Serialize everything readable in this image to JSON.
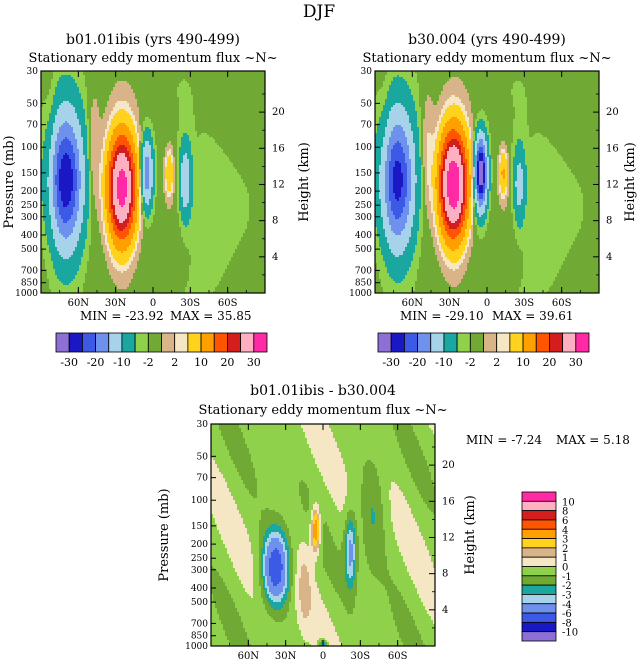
{
  "page_title": "DJF",
  "palette": {
    "main": [
      "#8e6fd6",
      "#1a17c4",
      "#3c5ae6",
      "#6f91ee",
      "#a6d3ea",
      "#1aa7a0",
      "#8fd14a",
      "#70a933",
      "#d8b488",
      "#f5e6c4",
      "#ffd21e",
      "#ff9f00",
      "#ff5400",
      "#d41d1d",
      "#ffb0c0",
      "#ff2aa4"
    ],
    "main_labels": [
      "-30",
      "-20",
      "-10",
      "-2",
      "2",
      "10",
      "20",
      "30"
    ],
    "diff": [
      "#8e6fd6",
      "#1a17c4",
      "#3c5ae6",
      "#6f91ee",
      "#a6d3ea",
      "#1aa7a0",
      "#70a933",
      "#8fd14a",
      "#f5e6c4",
      "#d8b488",
      "#ffd21e",
      "#ff9f00",
      "#ff5400",
      "#d41d1d",
      "#ffb0c0",
      "#ff2aa4"
    ],
    "diff_labels": [
      "10",
      "8",
      "6",
      "4",
      "3",
      "2",
      "1",
      "0",
      "-1",
      "-2",
      "-3",
      "-4",
      "-6",
      "-8",
      "-10"
    ]
  },
  "chart_data": [
    {
      "type": "heatmap",
      "title": "b01.01ibis (yrs 490-499)",
      "subtitle": "Stationary eddy momentum flux ~N~",
      "xlabel": "",
      "ylabel": "Pressure (mb)",
      "ylabel_right": "Height (km)",
      "x_ticks": [
        "60N",
        "30N",
        "0",
        "30S",
        "60S"
      ],
      "x_tick_values": [
        60,
        30,
        0,
        -30,
        -60
      ],
      "xlim": [
        90,
        -90
      ],
      "y_ticks": [
        30,
        50,
        70,
        100,
        150,
        200,
        250,
        300,
        400,
        500,
        700,
        850,
        1000
      ],
      "ylim": [
        1000,
        30
      ],
      "y_right_ticks": [
        4,
        8,
        12,
        16,
        20
      ],
      "min_label": "MIN =  -23.92",
      "max_label": "MAX =  35.85",
      "contour_levels": [
        -30,
        -25,
        -20,
        -15,
        -10,
        -5,
        -2,
        -1,
        0,
        1,
        2,
        5,
        10,
        15,
        20,
        30
      ],
      "features": [
        {
          "lat": 70,
          "p": 170,
          "value": -23.92
        },
        {
          "lat": 25,
          "p": 190,
          "value": 35.85
        },
        {
          "lat": 5,
          "p": 150,
          "value": -12
        },
        {
          "lat": -13,
          "p": 150,
          "value": 5
        },
        {
          "lat": -26,
          "p": 170,
          "value": -8
        }
      ]
    },
    {
      "type": "heatmap",
      "title": "b30.004 (yrs 490-499)",
      "subtitle": "Stationary eddy momentum flux ~N~",
      "xlabel": "",
      "ylabel": "",
      "ylabel_right": "Height (km)",
      "x_ticks": [
        "60N",
        "30N",
        "0",
        "30S",
        "60S"
      ],
      "x_tick_values": [
        60,
        30,
        0,
        -30,
        -60
      ],
      "xlim": [
        90,
        -90
      ],
      "y_ticks": [
        30,
        50,
        70,
        100,
        150,
        200,
        250,
        300,
        400,
        500,
        700,
        850,
        1000
      ],
      "ylim": [
        1000,
        30
      ],
      "y_right_ticks": [
        4,
        8,
        12,
        16,
        20
      ],
      "min_label": "MIN =  -29.10",
      "max_label": "MAX =  39.61",
      "contour_levels": [
        -30,
        -25,
        -20,
        -15,
        -10,
        -5,
        -2,
        -1,
        0,
        1,
        2,
        5,
        10,
        15,
        20,
        30
      ],
      "features": [
        {
          "lat": 72,
          "p": 170,
          "value": -22
        },
        {
          "lat": 27,
          "p": 180,
          "value": 39.61
        },
        {
          "lat": 5,
          "p": 150,
          "value": -29.1
        },
        {
          "lat": -13,
          "p": 150,
          "value": 6
        },
        {
          "lat": -26,
          "p": 180,
          "value": -6
        }
      ]
    },
    {
      "type": "heatmap",
      "title": "b01.01ibis - b30.004",
      "subtitle": "Stationary eddy momentum flux ~N~",
      "xlabel": "",
      "ylabel": "Pressure (mb)",
      "ylabel_right": "Height (km)",
      "x_ticks": [
        "60N",
        "30N",
        "0",
        "30S",
        "60S"
      ],
      "x_tick_values": [
        60,
        30,
        0,
        -30,
        -60
      ],
      "xlim": [
        90,
        -90
      ],
      "y_ticks": [
        30,
        50,
        70,
        100,
        150,
        200,
        250,
        300,
        400,
        500,
        700,
        850,
        1000
      ],
      "ylim": [
        1000,
        30
      ],
      "y_right_ticks": [
        4,
        8,
        12,
        16,
        20
      ],
      "min_label": "MIN =  -7.24",
      "max_label": "MAX =   5.18",
      "contour_levels": [
        -10,
        -8,
        -6,
        -4,
        -3,
        -2,
        -1,
        0,
        1,
        2,
        3,
        4,
        6,
        8,
        10
      ],
      "features": [
        {
          "lat": 38,
          "p": 270,
          "value": -7.24
        },
        {
          "lat": 6,
          "p": 160,
          "value": 5.18
        },
        {
          "lat": -22,
          "p": 200,
          "value": -4
        },
        {
          "lat": 0,
          "p": 960,
          "value": -3
        }
      ]
    }
  ]
}
